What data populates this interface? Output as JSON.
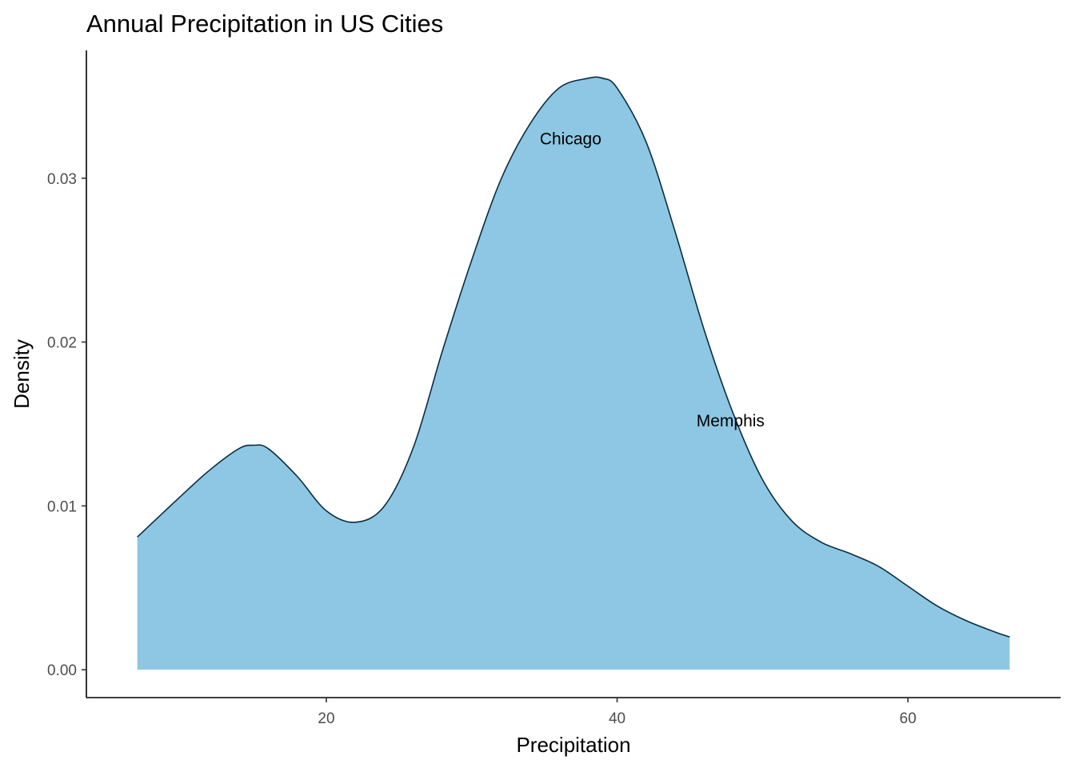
{
  "chart_data": {
    "type": "area",
    "title": "Annual Precipitation in US Cities",
    "xlabel": "Precipitation",
    "ylabel": "Density",
    "xlim": [
      3.5,
      70.5
    ],
    "ylim": [
      -0.0017,
      0.0378
    ],
    "xticks": [
      20,
      40,
      60
    ],
    "yticks": [
      0.0,
      0.01,
      0.02,
      0.03
    ],
    "ytick_labels": [
      "0.00",
      "0.01",
      "0.02",
      "0.03"
    ],
    "grid": false,
    "legend": "none",
    "fill_color": "#8ec7e3",
    "line_color": "#0a2e40",
    "series": [
      {
        "x": [
          7,
          10,
          12,
          14,
          15,
          16,
          18,
          20,
          22,
          24,
          26,
          28,
          30,
          32,
          34,
          36,
          38,
          39,
          40,
          42,
          44,
          46,
          48,
          50,
          52,
          54,
          56,
          58,
          60,
          62,
          64,
          66,
          67
        ],
        "y": [
          0.0081,
          0.0106,
          0.0122,
          0.0135,
          0.0137,
          0.0135,
          0.0118,
          0.0097,
          0.009,
          0.01,
          0.0136,
          0.0195,
          0.025,
          0.0299,
          0.0333,
          0.0355,
          0.0361,
          0.0361,
          0.0355,
          0.0322,
          0.0267,
          0.0207,
          0.0156,
          0.0116,
          0.0091,
          0.0078,
          0.0071,
          0.0063,
          0.0051,
          0.0039,
          0.003,
          0.0023,
          0.002
        ]
      }
    ],
    "annotations": [
      {
        "label": "Chicago",
        "x": 36.8,
        "y": 0.0324
      },
      {
        "label": "Memphis",
        "x": 47.8,
        "y": 0.0152
      }
    ]
  }
}
